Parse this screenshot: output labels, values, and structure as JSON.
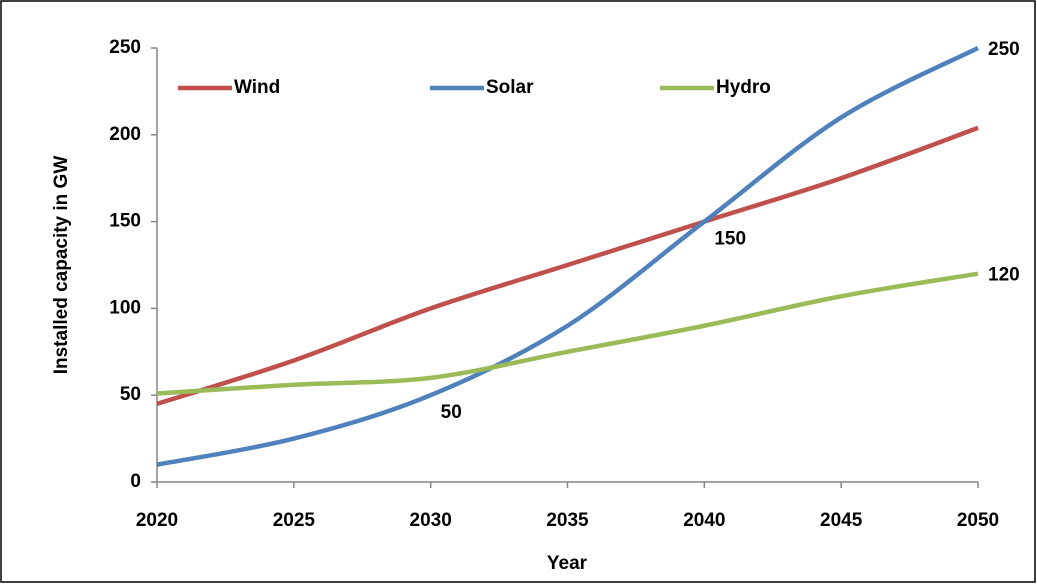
{
  "chart_data": {
    "type": "line",
    "x": [
      2020,
      2025,
      2030,
      2035,
      2040,
      2045,
      2050
    ],
    "xlim": [
      2020,
      2050
    ],
    "xticks": [
      2020,
      2025,
      2030,
      2035,
      2040,
      2045,
      2050
    ],
    "ylim": [
      0,
      250
    ],
    "yticks": [
      0,
      50,
      100,
      150,
      200,
      250
    ],
    "xlabel": "Year",
    "ylabel": "Installed capacity in GW",
    "legend": "top",
    "grid": false,
    "series": [
      {
        "name": "Wind",
        "color": "#c0504d",
        "values": [
          45,
          70,
          100,
          125,
          150,
          175,
          204
        ]
      },
      {
        "name": "Solar",
        "color": "#4f81bd",
        "values": [
          10,
          25,
          50,
          90,
          150,
          210,
          250
        ],
        "value_labels": [
          null,
          null,
          "50",
          null,
          "150",
          null,
          "250"
        ]
      },
      {
        "name": "Hydro",
        "color": "#9bbb59",
        "values": [
          51,
          56,
          60,
          75,
          90,
          107,
          120
        ],
        "value_labels": [
          null,
          null,
          null,
          null,
          null,
          null,
          "120"
        ]
      }
    ]
  }
}
